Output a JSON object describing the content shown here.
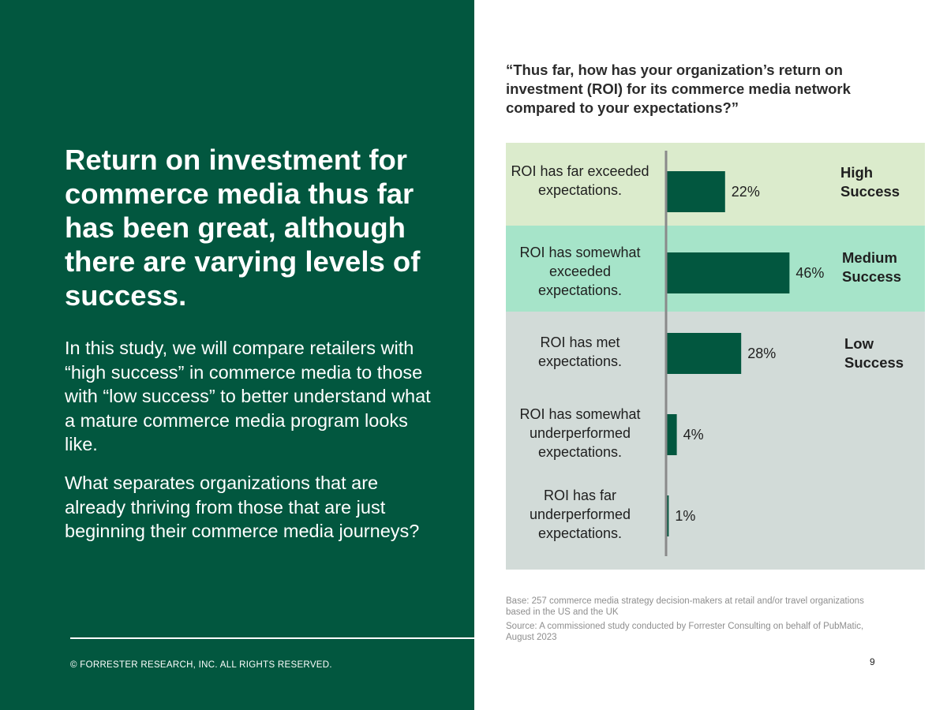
{
  "left_panel": {
    "headline": "Return on investment for commerce media thus far has been great, although there are varying levels of success.",
    "paragraph1": "In this study, we will compare retailers with “high success” in commerce media to those with “low success” to better understand what a mature commerce media program looks like.",
    "paragraph2": "What separates organizations that are already thriving from those that are just beginning their commerce media journeys?",
    "copyright": "© FORRESTER RESEARCH, INC. ALL RIGHTS RESERVED."
  },
  "colors": {
    "panel_green": "#02573f",
    "bar": "#02573f",
    "band_high": "#dbebcc",
    "band_medium": "#a6e4c9",
    "band_low": "#d2dbd8",
    "axis": "#8a8a8a"
  },
  "chart_data": {
    "type": "bar",
    "orientation": "horizontal",
    "title": "“Thus far, how has your organization’s return on investment (ROI) for its commerce media network compared to your expectations?”",
    "categories": [
      "ROI has far exceeded expectations.",
      "ROI has somewhat exceeded expectations.",
      "ROI has met expectations.",
      "ROI has somewhat underperformed expectations.",
      "ROI has far underperformed expectations."
    ],
    "values": [
      22,
      46,
      28,
      4,
      1
    ],
    "value_labels": [
      "22%",
      "46%",
      "28%",
      "4%",
      "1%"
    ],
    "unit": "%",
    "xlim": [
      0,
      100
    ],
    "bands": [
      {
        "label": "High Success",
        "categories": [
          0
        ]
      },
      {
        "label": "Medium Success",
        "categories": [
          1
        ]
      },
      {
        "label": "Low Success",
        "categories": [
          2,
          3,
          4
        ]
      }
    ]
  },
  "footnotes": {
    "base": "Base: 257 commerce media strategy decision-makers at retail and/or travel organizations based in the US and the UK",
    "source": "Source: A commissioned study conducted by Forrester Consulting on behalf of PubMatic, August 2023"
  },
  "page_number": "9"
}
